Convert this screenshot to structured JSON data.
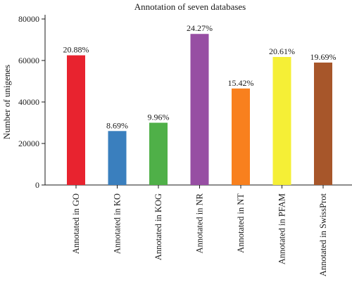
{
  "chart_data": {
    "type": "bar",
    "title": "Annotation of seven databases",
    "xlabel": "",
    "ylabel": "Number of unigenes",
    "ylim": [
      0,
      80000
    ],
    "yticks": [
      0,
      20000,
      40000,
      60000,
      80000
    ],
    "ytick_labels": [
      "0",
      "20000",
      "40000",
      "60000",
      "80000"
    ],
    "categories": [
      "Annotated in GO",
      "Annotated in KO",
      "Annotated in KOG",
      "Annotated in NR",
      "Annotated in NT",
      "Annotated in PFAM",
      "Annotated in SwissProt"
    ],
    "values": [
      62500,
      26000,
      30000,
      72800,
      46500,
      61700,
      59000
    ],
    "data_labels": [
      "20.88%",
      "8.69%",
      "9.96%",
      "24.27%",
      "15.42%",
      "20.61%",
      "19.69%"
    ],
    "colors": [
      "#e8232f",
      "#3a7fbe",
      "#4fb048",
      "#974ea3",
      "#f8801e",
      "#f5ef36",
      "#a7562a"
    ],
    "grid": false,
    "legend": "none"
  }
}
